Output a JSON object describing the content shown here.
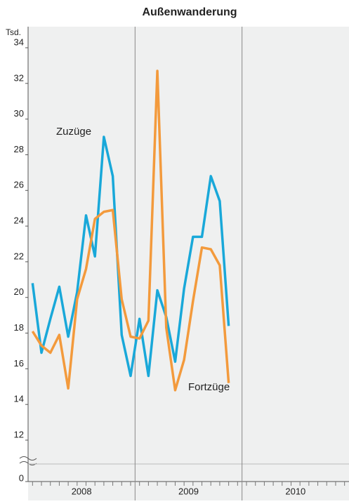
{
  "chart_data": {
    "type": "line",
    "title": "Außenwanderung",
    "y_label": "Tsd.",
    "categories": [
      null,
      null,
      null,
      null,
      null,
      null,
      null,
      null,
      null,
      null,
      null,
      null,
      null,
      null,
      null,
      null,
      null,
      null,
      null,
      null,
      null,
      null,
      null,
      null,
      null,
      null,
      null,
      null,
      null,
      null,
      null,
      null,
      null,
      null,
      null,
      null
    ],
    "year_labels": [
      "2008",
      "2009",
      "2010"
    ],
    "series": [
      {
        "name": "Zuzüge",
        "color": "#19a8d9",
        "values": [
          20.8,
          16.9,
          18.8,
          20.6,
          17.8,
          20.3,
          24.6,
          22.3,
          29.0,
          26.8,
          17.9,
          15.6,
          18.8,
          15.6,
          20.4,
          18.9,
          16.4,
          20.5,
          23.4,
          23.4,
          26.8,
          25.4,
          18.4,
          null,
          null,
          null,
          null,
          null,
          null,
          null,
          null,
          null,
          null,
          null,
          null,
          null
        ]
      },
      {
        "name": "Fortzüge",
        "color": "#f39a3c",
        "values": [
          18.1,
          17.3,
          16.9,
          17.9,
          14.9,
          19.9,
          21.6,
          24.4,
          24.8,
          24.9,
          19.9,
          17.8,
          17.7,
          18.7,
          32.7,
          18.3,
          14.8,
          16.5,
          19.8,
          22.8,
          22.7,
          21.8,
          15.2,
          null,
          null,
          null,
          null,
          null,
          null,
          null,
          null,
          null,
          null,
          null,
          null,
          null
        ]
      }
    ],
    "ylim": [
      12,
      34
    ],
    "yticks": [
      12,
      14,
      16,
      18,
      20,
      22,
      24,
      26,
      28,
      30,
      32,
      34
    ],
    "y_zero_tick": 0,
    "axis_break": true
  }
}
